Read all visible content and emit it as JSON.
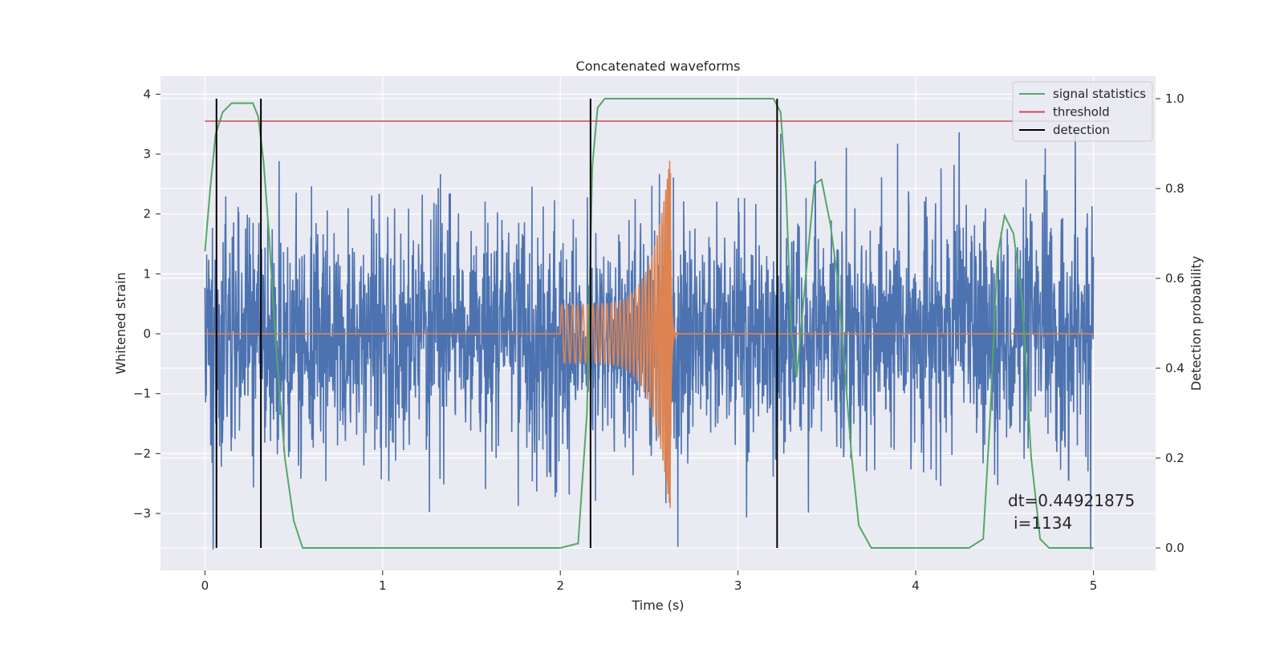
{
  "chart_data": {
    "type": "line",
    "title": "Concatenated waveforms",
    "xlabel": "Time (s)",
    "ylabel": "Whitened strain",
    "ylabel_right": "Detection probability",
    "xlim": [
      -0.25,
      5.35
    ],
    "ylim": [
      -3.95,
      4.3
    ],
    "ylim_right": [
      -0.05,
      1.05
    ],
    "x_ticks": [
      0,
      1,
      2,
      3,
      4,
      5
    ],
    "y_ticks": [
      -3,
      -2,
      -1,
      0,
      1,
      2,
      3,
      4
    ],
    "y_ticks_right": [
      0.0,
      0.2,
      0.4,
      0.6,
      0.8,
      1.0
    ],
    "x_tick_labels": [
      "0",
      "1",
      "2",
      "3",
      "4",
      "5"
    ],
    "y_tick_labels": [
      "−3",
      "−2",
      "−1",
      "0",
      "1",
      "2",
      "3",
      "4"
    ],
    "y_tick_labels_right": [
      "0.0",
      "0.2",
      "0.4",
      "0.6",
      "0.8",
      "1.0"
    ],
    "grid": true,
    "legend_position": "top-right",
    "legend": [
      {
        "label": "signal statistics",
        "color": "#55a868"
      },
      {
        "label": "threshold",
        "color": "#c44e52"
      },
      {
        "label": "detection",
        "color": "#000000"
      }
    ],
    "series": [
      {
        "kind": "whitened strain (noise)",
        "axis": "left",
        "color": "#4c72b0",
        "x_range": [
          0,
          5
        ],
        "typical_amplitude": 1.0,
        "max": 3.9,
        "min": -3.6
      },
      {
        "kind": "injected chirp",
        "axis": "left",
        "color": "#dd8452",
        "x_range": [
          0,
          5
        ],
        "chirp_start": 2.0,
        "chirp_peak_time": 2.62,
        "chirp_start_amplitude": 0.5,
        "chirp_peak_amplitude": 3.0
      },
      {
        "name": "signal statistics",
        "axis": "right",
        "color": "#55a868",
        "x": [
          0.0,
          0.03,
          0.06,
          0.1,
          0.15,
          0.2,
          0.27,
          0.3,
          0.33,
          0.36,
          0.4,
          0.45,
          0.5,
          0.55,
          0.6,
          2.0,
          2.1,
          2.15,
          2.18,
          2.21,
          2.25,
          2.3,
          3.2,
          3.24,
          3.27,
          3.3,
          3.33,
          3.38,
          3.43,
          3.47,
          3.52,
          3.56,
          3.6,
          3.64,
          3.68,
          3.75,
          4.3,
          4.38,
          4.42,
          4.46,
          4.5,
          4.55,
          4.6,
          4.65,
          4.7,
          4.75,
          5.0
        ],
        "y": [
          0.66,
          0.8,
          0.92,
          0.97,
          0.99,
          0.99,
          0.99,
          0.96,
          0.86,
          0.7,
          0.45,
          0.2,
          0.06,
          0.0,
          0.0,
          0.0,
          0.01,
          0.3,
          0.85,
          0.98,
          1.0,
          1.0,
          1.0,
          0.97,
          0.8,
          0.48,
          0.38,
          0.6,
          0.81,
          0.82,
          0.72,
          0.6,
          0.4,
          0.2,
          0.05,
          0.0,
          0.0,
          0.02,
          0.3,
          0.65,
          0.74,
          0.7,
          0.55,
          0.2,
          0.02,
          0.0,
          0.0
        ]
      },
      {
        "name": "threshold",
        "axis": "right",
        "color": "#c44e52",
        "x": [
          0,
          5.1
        ],
        "y": [
          0.95,
          0.95
        ]
      },
      {
        "name": "detection",
        "axis": "right",
        "color": "#000000",
        "x": [
          0.065,
          0.315,
          2.17,
          3.22
        ],
        "y_range": [
          0,
          1
        ]
      }
    ],
    "annotations": [
      "dt=0.44921875",
      "i=1134"
    ]
  }
}
